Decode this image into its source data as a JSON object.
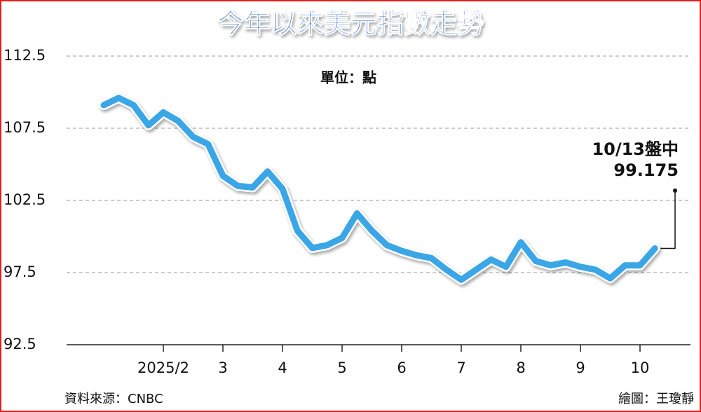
{
  "chart_data": {
    "type": "line",
    "title": "今年以來美元指數走勢",
    "subtitle": "單位：點",
    "source": "資料來源：CNBC",
    "credit": "繪圖：王瓊靜",
    "annotations": [
      "10/13盤中",
      "99.175"
    ],
    "categories": [
      null,
      null,
      null,
      null,
      "2025/2",
      null,
      null,
      null,
      "3",
      null,
      null,
      null,
      "4",
      null,
      null,
      null,
      "5",
      null,
      null,
      null,
      "6",
      null,
      null,
      null,
      "7",
      null,
      null,
      null,
      "8",
      null,
      null,
      null,
      "9",
      null,
      null,
      null,
      "10",
      null
    ],
    "series": [
      {
        "name": "美元指數",
        "color": "#3aa6e6",
        "values": [
          109.1,
          109.6,
          109.1,
          107.7,
          108.6,
          108.0,
          106.9,
          106.4,
          104.2,
          103.5,
          103.4,
          104.5,
          103.3,
          100.4,
          99.2,
          99.4,
          99.9,
          101.6,
          100.4,
          99.4,
          99.0,
          98.7,
          98.5,
          97.7,
          97.0,
          97.7,
          98.4,
          97.9,
          99.6,
          98.3,
          98.0,
          98.2,
          97.9,
          97.7,
          97.1,
          98.0,
          98.0,
          99.175
        ]
      }
    ],
    "ylim": [
      92.5,
      112.5
    ],
    "yticks": [
      92.5,
      97.5,
      102.5,
      107.5,
      112.5
    ],
    "grid": true
  }
}
